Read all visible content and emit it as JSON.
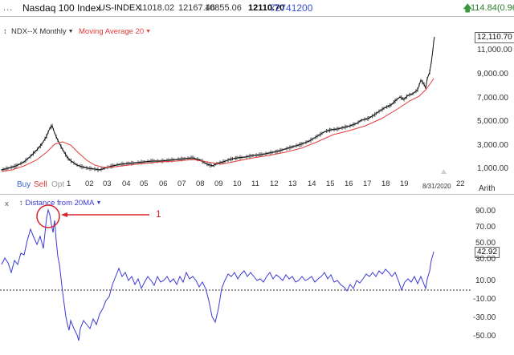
{
  "header": {
    "dots": "...",
    "index_name": "Nasdaq 100 Index",
    "symbol": "US-INDEX",
    "open": "11018.02",
    "high": "12167.46",
    "low": "10855.06",
    "close": "12110.70",
    "volume": "72741200",
    "change": "114.84(0.96%)",
    "change_icon": "up-arrow-icon"
  },
  "price_panel": {
    "symbol_label": "NDX--X Monthly",
    "ma_label": "Moving Average 20",
    "last_price_tag": "12,110.70",
    "axis_labels": [
      "11,000.00",
      "9,000.00",
      "7,000.00",
      "5,000.00",
      "3,000.00",
      "1,000.00"
    ],
    "scale_label": "Arith",
    "date_label": "8/31/2020",
    "x_labels": [
      "1",
      "02",
      "03",
      "04",
      "05",
      "06",
      "07",
      "08",
      "09",
      "10",
      "11",
      "12",
      "13",
      "14",
      "15",
      "16",
      "17",
      "18",
      "19",
      "22"
    ],
    "buy": "Buy",
    "sell": "Sell",
    "opt": "Opt",
    "colors": {
      "price": "#111111",
      "ma": "#e23a3a",
      "buy": "#3a5fc8",
      "sell": "#d93636",
      "opt": "#9a9a9a"
    }
  },
  "indicator_panel": {
    "close_label": "x",
    "label": "Distance from 20MA",
    "last_value_tag": "42.92",
    "axis_labels": [
      "90.00",
      "70.00",
      "50.00",
      "30.00",
      "10.00",
      "-10.00",
      "-30.00",
      "-50.00"
    ],
    "color": "#3a3ad8"
  },
  "annotation": {
    "number": "1",
    "color": "#d9232a"
  }
}
